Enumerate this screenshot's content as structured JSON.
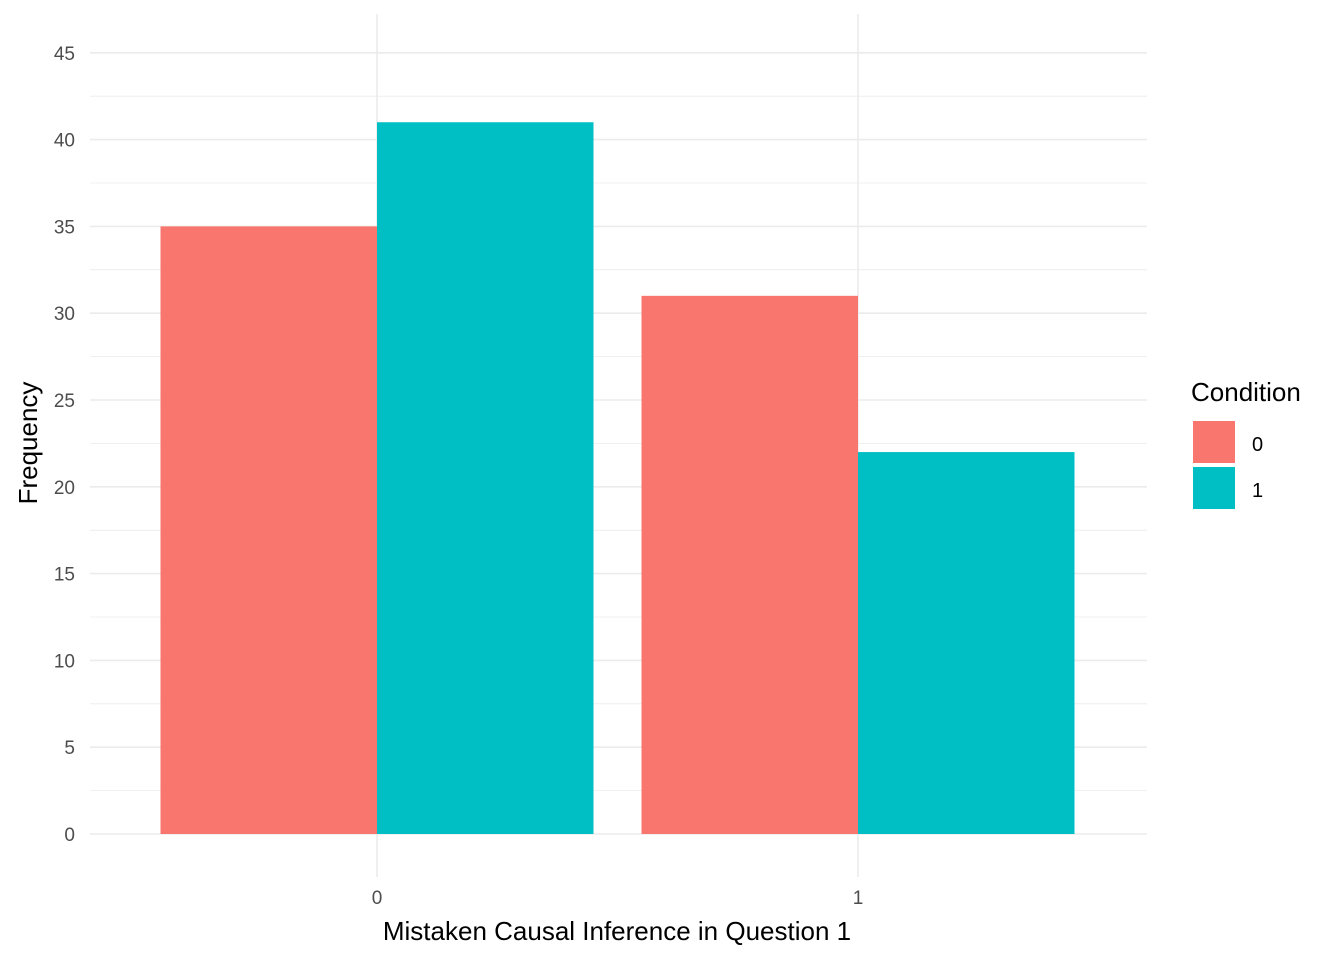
{
  "chart_data": {
    "type": "bar",
    "categories": [
      "0",
      "1"
    ],
    "series": [
      {
        "name": "0",
        "values": [
          35,
          31
        ],
        "color": "#F8766D"
      },
      {
        "name": "1",
        "values": [
          41,
          22
        ],
        "color": "#00BFC4"
      }
    ],
    "xlabel": "Mistaken Causal Inference in Question 1",
    "ylabel": "Frequency",
    "ylim": [
      0,
      45
    ],
    "yticks": [
      "0",
      "5",
      "10",
      "15",
      "20",
      "25",
      "30",
      "35",
      "40",
      "45"
    ],
    "legend": {
      "title": "Condition",
      "position": "right"
    },
    "grid": true
  }
}
